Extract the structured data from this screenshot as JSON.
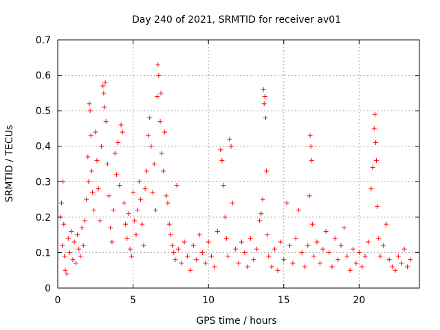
{
  "chart_data": {
    "type": "scatter",
    "title": "Day 240 of 2021, SRMTID for receiver av01",
    "xlabel": "GPS time / hours",
    "ylabel": "SRMTID / TECUs",
    "xlim": [
      0,
      24
    ],
    "ylim": [
      0,
      0.7
    ],
    "xticks": [
      0,
      5,
      10,
      15,
      20
    ],
    "yticks": [
      0,
      0.1,
      0.2,
      0.3,
      0.4,
      0.5,
      0.6,
      0.7
    ],
    "xtick_labels": [
      "0",
      "5",
      "10",
      "15",
      "20"
    ],
    "ytick_labels": [
      "0",
      "0.1",
      "0.2",
      "0.3",
      "0.4",
      "0.5",
      "0.6",
      "0.7"
    ],
    "grid": true,
    "marker": "+",
    "color": "#ff0000",
    "series": [
      {
        "name": "SRMTID",
        "points": [
          [
            0.2,
            0.2
          ],
          [
            0.25,
            0.24
          ],
          [
            0.3,
            0.12
          ],
          [
            0.35,
            0.3
          ],
          [
            0.4,
            0.18
          ],
          [
            0.45,
            0.09
          ],
          [
            0.5,
            0.05
          ],
          [
            0.6,
            0.04
          ],
          [
            0.7,
            0.14
          ],
          [
            0.8,
            0.1
          ],
          [
            0.9,
            0.16
          ],
          [
            1.0,
            0.08
          ],
          [
            1.1,
            0.13
          ],
          [
            1.2,
            0.07
          ],
          [
            1.3,
            0.15
          ],
          [
            1.4,
            0.11
          ],
          [
            1.5,
            0.09
          ],
          [
            1.6,
            0.17
          ],
          [
            1.7,
            0.12
          ],
          [
            1.8,
            0.19
          ],
          [
            1.9,
            0.25
          ],
          [
            2.0,
            0.37
          ],
          [
            2.05,
            0.3
          ],
          [
            2.1,
            0.52
          ],
          [
            2.15,
            0.5
          ],
          [
            2.2,
            0.43
          ],
          [
            2.25,
            0.33
          ],
          [
            2.3,
            0.27
          ],
          [
            2.4,
            0.22
          ],
          [
            2.5,
            0.44
          ],
          [
            2.6,
            0.36
          ],
          [
            2.7,
            0.28
          ],
          [
            2.8,
            0.19
          ],
          [
            2.9,
            0.4
          ],
          [
            3.0,
            0.57
          ],
          [
            3.05,
            0.55
          ],
          [
            3.1,
            0.51
          ],
          [
            3.15,
            0.58
          ],
          [
            3.2,
            0.47
          ],
          [
            3.3,
            0.35
          ],
          [
            3.4,
            0.26
          ],
          [
            3.5,
            0.17
          ],
          [
            3.6,
            0.13
          ],
          [
            3.7,
            0.22
          ],
          [
            3.8,
            0.38
          ],
          [
            3.9,
            0.32
          ],
          [
            4.0,
            0.41
          ],
          [
            4.1,
            0.29
          ],
          [
            4.2,
            0.46
          ],
          [
            4.3,
            0.44
          ],
          [
            4.4,
            0.24
          ],
          [
            4.5,
            0.18
          ],
          [
            4.6,
            0.14
          ],
          [
            4.7,
            0.21
          ],
          [
            4.8,
            0.11
          ],
          [
            4.9,
            0.09
          ],
          [
            5.0,
            0.27
          ],
          [
            5.1,
            0.19
          ],
          [
            5.2,
            0.15
          ],
          [
            5.3,
            0.22
          ],
          [
            5.4,
            0.3
          ],
          [
            5.5,
            0.25
          ],
          [
            5.6,
            0.18
          ],
          [
            5.7,
            0.12
          ],
          [
            5.8,
            0.28
          ],
          [
            5.9,
            0.33
          ],
          [
            6.0,
            0.43
          ],
          [
            6.1,
            0.48
          ],
          [
            6.2,
            0.4
          ],
          [
            6.3,
            0.27
          ],
          [
            6.4,
            0.35
          ],
          [
            6.5,
            0.22
          ],
          [
            6.6,
            0.54
          ],
          [
            6.65,
            0.63
          ],
          [
            6.7,
            0.6
          ],
          [
            6.8,
            0.47
          ],
          [
            6.85,
            0.55
          ],
          [
            6.9,
            0.38
          ],
          [
            7.0,
            0.33
          ],
          [
            7.1,
            0.44
          ],
          [
            7.2,
            0.26
          ],
          [
            7.3,
            0.24
          ],
          [
            7.4,
            0.18
          ],
          [
            7.5,
            0.15
          ],
          [
            7.6,
            0.12
          ],
          [
            7.7,
            0.1
          ],
          [
            7.8,
            0.08
          ],
          [
            7.9,
            0.29
          ],
          [
            8.0,
            0.11
          ],
          [
            8.2,
            0.07
          ],
          [
            8.4,
            0.13
          ],
          [
            8.6,
            0.09
          ],
          [
            8.8,
            0.05
          ],
          [
            9.0,
            0.12
          ],
          [
            9.2,
            0.08
          ],
          [
            9.4,
            0.15
          ],
          [
            9.6,
            0.1
          ],
          [
            9.8,
            0.07
          ],
          [
            10.0,
            0.13
          ],
          [
            10.2,
            0.09
          ],
          [
            10.4,
            0.06
          ],
          [
            10.6,
            0.16
          ],
          [
            10.8,
            0.39
          ],
          [
            10.9,
            0.36
          ],
          [
            11.0,
            0.29
          ],
          [
            11.1,
            0.2
          ],
          [
            11.2,
            0.14
          ],
          [
            11.3,
            0.09
          ],
          [
            11.4,
            0.42
          ],
          [
            11.5,
            0.4
          ],
          [
            11.6,
            0.24
          ],
          [
            11.8,
            0.11
          ],
          [
            12.0,
            0.07
          ],
          [
            12.2,
            0.13
          ],
          [
            12.4,
            0.1
          ],
          [
            12.6,
            0.06
          ],
          [
            12.8,
            0.14
          ],
          [
            13.0,
            0.08
          ],
          [
            13.2,
            0.11
          ],
          [
            13.4,
            0.19
          ],
          [
            13.5,
            0.21
          ],
          [
            13.6,
            0.25
          ],
          [
            13.65,
            0.56
          ],
          [
            13.7,
            0.52
          ],
          [
            13.75,
            0.54
          ],
          [
            13.8,
            0.48
          ],
          [
            13.85,
            0.33
          ],
          [
            13.9,
            0.15
          ],
          [
            14.0,
            0.09
          ],
          [
            14.2,
            0.06
          ],
          [
            14.4,
            0.11
          ],
          [
            14.6,
            0.05
          ],
          [
            14.8,
            0.13
          ],
          [
            15.0,
            0.08
          ],
          [
            15.2,
            0.24
          ],
          [
            15.4,
            0.12
          ],
          [
            15.6,
            0.07
          ],
          [
            15.8,
            0.14
          ],
          [
            16.0,
            0.22
          ],
          [
            16.2,
            0.1
          ],
          [
            16.4,
            0.06
          ],
          [
            16.6,
            0.12
          ],
          [
            16.7,
            0.26
          ],
          [
            16.75,
            0.43
          ],
          [
            16.8,
            0.4
          ],
          [
            16.85,
            0.36
          ],
          [
            16.9,
            0.18
          ],
          [
            17.0,
            0.09
          ],
          [
            17.2,
            0.13
          ],
          [
            17.4,
            0.07
          ],
          [
            17.6,
            0.11
          ],
          [
            17.8,
            0.16
          ],
          [
            18.0,
            0.1
          ],
          [
            18.2,
            0.06
          ],
          [
            18.4,
            0.14
          ],
          [
            18.6,
            0.08
          ],
          [
            18.8,
            0.12
          ],
          [
            19.0,
            0.17
          ],
          [
            19.2,
            0.09
          ],
          [
            19.4,
            0.05
          ],
          [
            19.6,
            0.11
          ],
          [
            19.8,
            0.07
          ],
          [
            20.0,
            0.1
          ],
          [
            20.2,
            0.06
          ],
          [
            20.4,
            0.09
          ],
          [
            20.6,
            0.13
          ],
          [
            20.8,
            0.28
          ],
          [
            20.9,
            0.34
          ],
          [
            21.0,
            0.45
          ],
          [
            21.05,
            0.49
          ],
          [
            21.1,
            0.41
          ],
          [
            21.15,
            0.36
          ],
          [
            21.2,
            0.23
          ],
          [
            21.3,
            0.14
          ],
          [
            21.4,
            0.09
          ],
          [
            21.6,
            0.12
          ],
          [
            21.8,
            0.18
          ],
          [
            22.0,
            0.08
          ],
          [
            22.2,
            0.06
          ],
          [
            22.4,
            0.05
          ],
          [
            22.6,
            0.09
          ],
          [
            22.8,
            0.07
          ],
          [
            23.0,
            0.11
          ],
          [
            23.2,
            0.06
          ],
          [
            23.4,
            0.08
          ]
        ]
      }
    ]
  }
}
